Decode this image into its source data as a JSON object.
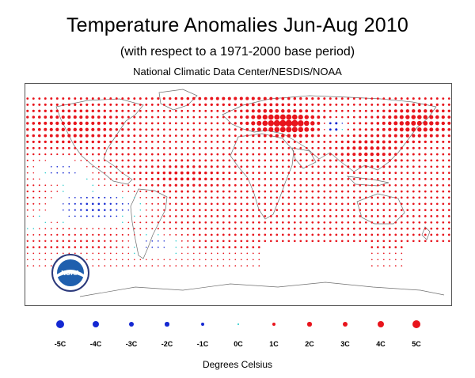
{
  "header": {
    "title": "Temperature Anomalies Jun-Aug 2010",
    "subtitle": "(with respect to a 1971-2000 base period)",
    "source": "National Climatic Data Center/NESDIS/NOAA"
  },
  "logo": {
    "text": "NOAA"
  },
  "colors": {
    "warm": "#e8141c",
    "cold": "#1428d2",
    "neutral": "#18c8c8",
    "land": "#6e6e6e"
  },
  "legend": {
    "items": [
      {
        "label": "-5C",
        "value": -5
      },
      {
        "label": "-4C",
        "value": -4
      },
      {
        "label": "-3C",
        "value": -3
      },
      {
        "label": "-2C",
        "value": -2
      },
      {
        "label": "-1C",
        "value": -1
      },
      {
        "label": "0C",
        "value": 0
      },
      {
        "label": "1C",
        "value": 1
      },
      {
        "label": "2C",
        "value": 2
      },
      {
        "label": "3C",
        "value": 3
      },
      {
        "label": "4C",
        "value": 4
      },
      {
        "label": "5C",
        "value": 5
      }
    ],
    "units": "Degrees Celsius"
  },
  "grid": {
    "lon_range": [
      -180,
      180
    ],
    "lat_range": [
      -90,
      90
    ],
    "cell_degrees": 5
  }
}
